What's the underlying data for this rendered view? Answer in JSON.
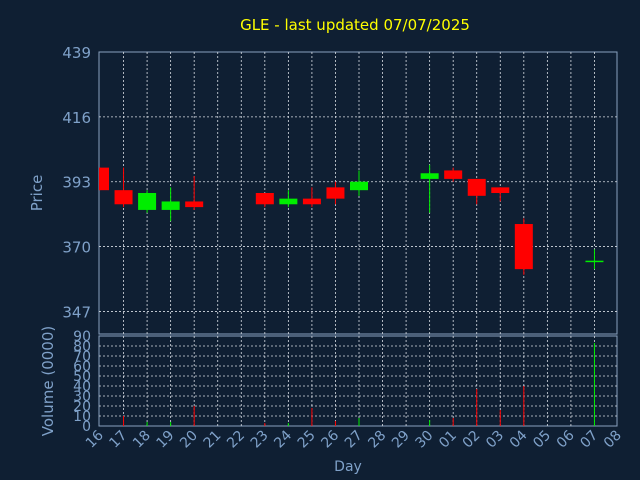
{
  "chart_data": {
    "type": "candlestick",
    "title": "GLE - last updated 07/07/2025",
    "ylabel": "Price",
    "volume_label": "Volume (0000)",
    "xlabel": "Day",
    "price_ylim": [
      339,
      439
    ],
    "price_ticks": [
      "439",
      "416",
      "393",
      "370",
      "347"
    ],
    "volume_ylim": [
      0,
      90
    ],
    "volume_ticks": [
      "0",
      "10",
      "20",
      "30",
      "40",
      "50",
      "60",
      "70",
      "80",
      "90"
    ],
    "x_labels": [
      "16",
      "17",
      "18",
      "19",
      "20",
      "21",
      "22",
      "23",
      "24",
      "25",
      "26",
      "27",
      "28",
      "29",
      "30",
      "01",
      "02",
      "03",
      "04",
      "05",
      "06",
      "07",
      "08"
    ],
    "candles": [
      {
        "day": "16",
        "open": 398,
        "close": 390,
        "high": 398,
        "low": 390,
        "volume": 0
      },
      {
        "day": "17",
        "open": 390,
        "close": 385,
        "high": 398,
        "low": 384,
        "volume": 10
      },
      {
        "day": "18",
        "open": 383,
        "close": 389,
        "high": 390,
        "low": 382,
        "volume": 4
      },
      {
        "day": "19",
        "open": 383,
        "close": 386,
        "high": 391,
        "low": 379,
        "volume": 4
      },
      {
        "day": "20",
        "open": 386,
        "close": 384,
        "high": 395,
        "low": 383,
        "volume": 20
      },
      {
        "day": "23",
        "open": 389,
        "close": 385,
        "high": 389,
        "low": 384,
        "volume": 3
      },
      {
        "day": "24",
        "open": 385,
        "close": 387,
        "high": 390,
        "low": 384,
        "volume": 3
      },
      {
        "day": "25",
        "open": 387,
        "close": 385,
        "high": 391,
        "low": 384,
        "volume": 18
      },
      {
        "day": "26",
        "open": 391,
        "close": 387,
        "high": 393,
        "low": 385,
        "volume": 5
      },
      {
        "day": "27",
        "open": 390,
        "close": 393,
        "high": 397,
        "low": 388,
        "volume": 8
      },
      {
        "day": "30",
        "open": 394,
        "close": 396,
        "high": 399,
        "low": 382,
        "volume": 6
      },
      {
        "day": "01",
        "open": 397,
        "close": 394,
        "high": 398,
        "low": 393,
        "volume": 8
      },
      {
        "day": "02",
        "open": 394,
        "close": 388,
        "high": 394,
        "low": 385,
        "volume": 37
      },
      {
        "day": "03",
        "open": 391,
        "close": 389,
        "high": 391,
        "low": 386,
        "volume": 16
      },
      {
        "day": "04",
        "open": 378,
        "close": 362,
        "high": 380,
        "low": 360,
        "volume": 40
      },
      {
        "day": "07",
        "open": 365,
        "close": 365,
        "high": 369,
        "low": 362,
        "volume": 83
      }
    ],
    "grid": true
  },
  "colors": {
    "background": "#0f1f33",
    "title": "#ffff00",
    "axis_text": "#7fa1c9",
    "frame": "#8aa2bf",
    "grid": "#d8dde4",
    "up": "#00ee00",
    "down": "#ff0000"
  }
}
